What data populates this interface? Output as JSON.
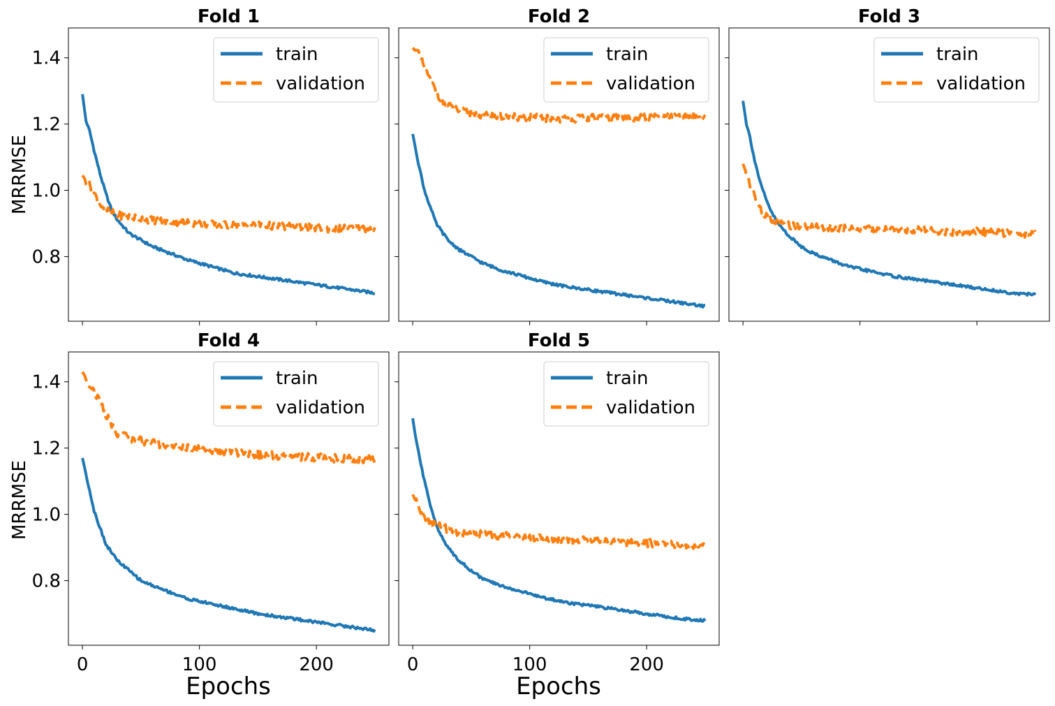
{
  "figure": {
    "ylabel": "MRRMSE",
    "xlabel": "Epochs",
    "x_ticks": [
      0,
      100,
      200
    ],
    "y_ticks": [
      "0.8",
      "1.0",
      "1.2",
      "1.4"
    ],
    "x_tick_labels": [
      "0",
      "100",
      "200"
    ]
  },
  "colors": {
    "train": "#1f77b4",
    "validation": "#ff7f0e"
  },
  "chart_data": [
    {
      "type": "line",
      "title": "Fold 1",
      "xlim": [
        -12,
        262
      ],
      "ylim": [
        0.605,
        1.49
      ],
      "legend": "top-right",
      "grid": false,
      "series": [
        {
          "name": "train",
          "style": "solid",
          "points": [
            [
              0,
              1.29
            ],
            [
              3,
              1.21
            ],
            [
              6,
              1.18
            ],
            [
              10,
              1.12
            ],
            [
              15,
              1.05
            ],
            [
              20,
              0.99
            ],
            [
              25,
              0.94
            ],
            [
              30,
              0.91
            ],
            [
              40,
              0.87
            ],
            [
              50,
              0.85
            ],
            [
              60,
              0.83
            ],
            [
              75,
              0.81
            ],
            [
              90,
              0.79
            ],
            [
              110,
              0.77
            ],
            [
              130,
              0.75
            ],
            [
              150,
              0.74
            ],
            [
              170,
              0.73
            ],
            [
              190,
              0.72
            ],
            [
              210,
              0.71
            ],
            [
              230,
              0.7
            ],
            [
              250,
              0.69
            ]
          ]
        },
        {
          "name": "validation",
          "style": "dashed",
          "points": [
            [
              0,
              1.045
            ],
            [
              5,
              1.02
            ],
            [
              10,
              0.99
            ],
            [
              15,
              0.96
            ],
            [
              20,
              0.94
            ],
            [
              30,
              0.925
            ],
            [
              40,
              0.92
            ],
            [
              60,
              0.91
            ],
            [
              80,
              0.905
            ],
            [
              100,
              0.9
            ],
            [
              120,
              0.895
            ],
            [
              150,
              0.895
            ],
            [
              180,
              0.89
            ],
            [
              210,
              0.885
            ],
            [
              230,
              0.885
            ],
            [
              250,
              0.885
            ]
          ]
        }
      ]
    },
    {
      "type": "line",
      "title": "Fold 2",
      "xlim": [
        -12,
        262
      ],
      "ylim": [
        0.605,
        1.49
      ],
      "legend": "top-right",
      "grid": false,
      "series": [
        {
          "name": "train",
          "style": "solid",
          "points": [
            [
              0,
              1.17
            ],
            [
              5,
              1.08
            ],
            [
              10,
              1.0
            ],
            [
              15,
              0.95
            ],
            [
              20,
              0.9
            ],
            [
              30,
              0.85
            ],
            [
              40,
              0.82
            ],
            [
              50,
              0.8
            ],
            [
              60,
              0.78
            ],
            [
              75,
              0.76
            ],
            [
              90,
              0.745
            ],
            [
              110,
              0.725
            ],
            [
              130,
              0.71
            ],
            [
              150,
              0.7
            ],
            [
              170,
              0.69
            ],
            [
              190,
              0.68
            ],
            [
              210,
              0.67
            ],
            [
              230,
              0.66
            ],
            [
              250,
              0.65
            ]
          ]
        },
        {
          "name": "validation",
          "style": "dashed",
          "points": [
            [
              0,
              1.43
            ],
            [
              5,
              1.41
            ],
            [
              10,
              1.37
            ],
            [
              15,
              1.33
            ],
            [
              20,
              1.3
            ],
            [
              25,
              1.27
            ],
            [
              30,
              1.255
            ],
            [
              40,
              1.24
            ],
            [
              60,
              1.225
            ],
            [
              80,
              1.22
            ],
            [
              100,
              1.22
            ],
            [
              130,
              1.215
            ],
            [
              160,
              1.22
            ],
            [
              190,
              1.22
            ],
            [
              220,
              1.22
            ],
            [
              250,
              1.22
            ]
          ]
        }
      ]
    },
    {
      "type": "line",
      "title": "Fold 3",
      "xlim": [
        -12,
        262
      ],
      "ylim": [
        0.605,
        1.49
      ],
      "legend": "top-right",
      "grid": false,
      "series": [
        {
          "name": "train",
          "style": "solid",
          "points": [
            [
              0,
              1.27
            ],
            [
              3,
              1.2
            ],
            [
              6,
              1.16
            ],
            [
              10,
              1.09
            ],
            [
              15,
              1.02
            ],
            [
              20,
              0.97
            ],
            [
              25,
              0.93
            ],
            [
              30,
              0.9
            ],
            [
              40,
              0.86
            ],
            [
              50,
              0.83
            ],
            [
              60,
              0.81
            ],
            [
              75,
              0.79
            ],
            [
              90,
              0.77
            ],
            [
              110,
              0.755
            ],
            [
              130,
              0.74
            ],
            [
              150,
              0.73
            ],
            [
              170,
              0.72
            ],
            [
              190,
              0.71
            ],
            [
              210,
              0.7
            ],
            [
              230,
              0.69
            ],
            [
              250,
              0.685
            ]
          ]
        },
        {
          "name": "validation",
          "style": "dashed",
          "points": [
            [
              0,
              1.08
            ],
            [
              5,
              1.03
            ],
            [
              10,
              0.98
            ],
            [
              15,
              0.945
            ],
            [
              20,
              0.92
            ],
            [
              30,
              0.9
            ],
            [
              40,
              0.895
            ],
            [
              60,
              0.89
            ],
            [
              90,
              0.885
            ],
            [
              120,
              0.88
            ],
            [
              150,
              0.88
            ],
            [
              180,
              0.875
            ],
            [
              210,
              0.875
            ],
            [
              230,
              0.87
            ],
            [
              250,
              0.87
            ]
          ]
        }
      ]
    },
    {
      "type": "line",
      "title": "Fold 4",
      "xlim": [
        -12,
        262
      ],
      "ylim": [
        0.605,
        1.49
      ],
      "legend": "top-right",
      "grid": false,
      "series": [
        {
          "name": "train",
          "style": "solid",
          "points": [
            [
              0,
              1.17
            ],
            [
              5,
              1.09
            ],
            [
              10,
              1.01
            ],
            [
              15,
              0.96
            ],
            [
              20,
              0.91
            ],
            [
              30,
              0.86
            ],
            [
              40,
              0.83
            ],
            [
              50,
              0.8
            ],
            [
              60,
              0.785
            ],
            [
              75,
              0.765
            ],
            [
              90,
              0.745
            ],
            [
              110,
              0.73
            ],
            [
              130,
              0.715
            ],
            [
              150,
              0.7
            ],
            [
              170,
              0.69
            ],
            [
              190,
              0.68
            ],
            [
              210,
              0.67
            ],
            [
              230,
              0.66
            ],
            [
              250,
              0.65
            ]
          ]
        },
        {
          "name": "validation",
          "style": "dashed",
          "points": [
            [
              0,
              1.43
            ],
            [
              5,
              1.4
            ],
            [
              10,
              1.37
            ],
            [
              15,
              1.34
            ],
            [
              20,
              1.3
            ],
            [
              25,
              1.27
            ],
            [
              30,
              1.245
            ],
            [
              40,
              1.23
            ],
            [
              60,
              1.215
            ],
            [
              80,
              1.205
            ],
            [
              100,
              1.195
            ],
            [
              120,
              1.19
            ],
            [
              150,
              1.18
            ],
            [
              180,
              1.175
            ],
            [
              210,
              1.17
            ],
            [
              250,
              1.165
            ]
          ]
        }
      ]
    },
    {
      "type": "line",
      "title": "Fold 5",
      "xlim": [
        -12,
        262
      ],
      "ylim": [
        0.605,
        1.49
      ],
      "legend": "top-right",
      "grid": false,
      "series": [
        {
          "name": "train",
          "style": "solid",
          "points": [
            [
              0,
              1.29
            ],
            [
              3,
              1.22
            ],
            [
              6,
              1.17
            ],
            [
              10,
              1.1
            ],
            [
              15,
              1.03
            ],
            [
              20,
              0.97
            ],
            [
              25,
              0.93
            ],
            [
              30,
              0.9
            ],
            [
              40,
              0.86
            ],
            [
              50,
              0.83
            ],
            [
              60,
              0.805
            ],
            [
              75,
              0.785
            ],
            [
              90,
              0.77
            ],
            [
              110,
              0.75
            ],
            [
              130,
              0.735
            ],
            [
              150,
              0.725
            ],
            [
              170,
              0.715
            ],
            [
              190,
              0.705
            ],
            [
              210,
              0.695
            ],
            [
              230,
              0.685
            ],
            [
              250,
              0.68
            ]
          ]
        },
        {
          "name": "validation",
          "style": "dashed",
          "points": [
            [
              0,
              1.06
            ],
            [
              5,
              1.02
            ],
            [
              10,
              0.995
            ],
            [
              15,
              0.98
            ],
            [
              20,
              0.97
            ],
            [
              30,
              0.955
            ],
            [
              40,
              0.945
            ],
            [
              60,
              0.94
            ],
            [
              80,
              0.935
            ],
            [
              100,
              0.93
            ],
            [
              130,
              0.925
            ],
            [
              160,
              0.92
            ],
            [
              190,
              0.915
            ],
            [
              220,
              0.91
            ],
            [
              250,
              0.905
            ]
          ]
        }
      ]
    }
  ]
}
